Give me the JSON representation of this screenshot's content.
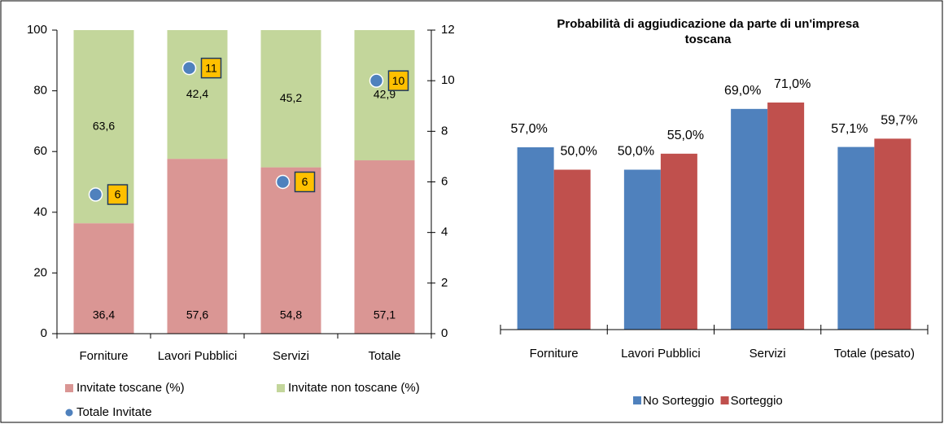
{
  "chart_data": [
    {
      "type": "stacked-bar-dual",
      "categories": [
        "Forniture",
        "Lavori Pubblici",
        "Servizi",
        "Totale"
      ],
      "series": [
        {
          "name": "Invitate toscane  (%)",
          "color": "#da9694",
          "values": [
            36.4,
            57.6,
            54.8,
            57.1
          ],
          "value_labels": [
            "36,4",
            "57,6",
            "54,8",
            "57,1"
          ]
        },
        {
          "name": "Invitate non toscane (%)",
          "color": "#c3d69b",
          "values": [
            63.6,
            42.4,
            45.2,
            42.9
          ],
          "value_labels": [
            "63,6",
            "42,4",
            "45,2",
            "42,9"
          ]
        },
        {
          "name": "Totale Invitate",
          "color": "#4f81bd",
          "axis": "y2",
          "values": [
            5.5,
            10.5,
            6,
            10
          ],
          "value_labels": [
            "6",
            "11",
            "6",
            "10"
          ]
        }
      ],
      "ylim": [
        0,
        100
      ],
      "yticks": [
        0,
        20,
        40,
        60,
        80,
        100
      ],
      "y2lim": [
        0,
        12
      ],
      "y2ticks": [
        0,
        2,
        4,
        6,
        8,
        10,
        12
      ]
    },
    {
      "type": "grouped-bar",
      "title": "Probabilità di aggiudicazione da parte di un'impresa toscana",
      "categories": [
        "Forniture",
        "Lavori Pubblici",
        "Servizi",
        "Totale (pesato)"
      ],
      "series": [
        {
          "name": "No Sorteggio",
          "color": "#4f81bd",
          "values": [
            57.0,
            50.0,
            69.0,
            57.1
          ],
          "value_labels": [
            "57,0%",
            "50,0%",
            "69,0%",
            "57,1%"
          ]
        },
        {
          "name": "Sorteggio",
          "color": "#c0504d",
          "values": [
            50.0,
            55.0,
            71.0,
            59.7
          ],
          "value_labels": [
            "50,0%",
            "55,0%",
            "71,0%",
            "59,7%"
          ]
        }
      ],
      "ylim": [
        0,
        100
      ]
    }
  ]
}
